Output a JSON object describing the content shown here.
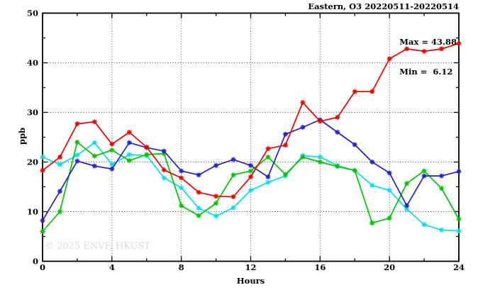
{
  "figure": {
    "title": "Eastern, O3 20220511-20220514",
    "stats": {
      "max_line": "Max = 43.88",
      "min_line": "Min =  6.12"
    },
    "watermark": "© 2025 ENVF, HKUST",
    "xlabel": "Hours",
    "ylabel": "ppb"
  },
  "chart_data": {
    "type": "line",
    "title": "Eastern, O3 20220511-20220514",
    "xlabel": "Hours",
    "ylabel": "ppb",
    "xlim": [
      0,
      24
    ],
    "ylim": [
      0,
      50
    ],
    "x_major_ticks": [
      0,
      4,
      8,
      12,
      16,
      20,
      24
    ],
    "x_minor_tick_step": 2,
    "y_major_ticks": [
      0,
      10,
      20,
      30,
      40,
      50
    ],
    "y_minor_tick_step": 5,
    "grid": {
      "x_lines": [
        4,
        8,
        12,
        16,
        20
      ],
      "y_lines": [
        10,
        20,
        30,
        40
      ],
      "style": "dotted"
    },
    "legend": "none",
    "stats": {
      "max": 43.88,
      "min": 6.12
    },
    "x": [
      0,
      1,
      2,
      3,
      4,
      5,
      6,
      7,
      8,
      9,
      10,
      11,
      12,
      13,
      14,
      15,
      16,
      17,
      18,
      19,
      20,
      21,
      22,
      23,
      24
    ],
    "series": [
      {
        "name": "cyan",
        "color": "#00e0e8",
        "marker": "asterisk",
        "values": [
          21,
          19.5,
          21.4,
          23.9,
          19.5,
          21.5,
          21.3,
          16.8,
          14.8,
          10.7,
          9.1,
          10.8,
          14.3,
          15.9,
          17.2,
          21.3,
          21,
          19.3,
          18.3,
          15.3,
          14.3,
          10.5,
          7.4,
          6.3,
          6.12
        ]
      },
      {
        "name": "green",
        "color": "#00c400",
        "marker": "asterisk",
        "values": [
          6,
          10,
          24,
          21.2,
          22.4,
          20.3,
          21.5,
          21.7,
          11.2,
          9.2,
          11.7,
          17.4,
          18.2,
          21,
          17.5,
          21,
          20,
          19.1,
          18.3,
          7.7,
          8.7,
          15.7,
          18.2,
          14.7,
          8.5
        ]
      },
      {
        "name": "blue",
        "color": "#2222cc",
        "marker": "asterisk",
        "values": [
          8.2,
          14.1,
          20.2,
          19.2,
          18.6,
          23.9,
          22.9,
          22.2,
          18.2,
          17.4,
          19.3,
          20.5,
          19.3,
          17,
          25.6,
          27,
          28.5,
          26,
          23.5,
          20,
          17.8,
          11.2,
          17.2,
          17.2,
          18.1
        ]
      },
      {
        "name": "red",
        "color": "#f20000",
        "marker": "asterisk",
        "values": [
          18.3,
          21,
          27.7,
          28.1,
          23.6,
          26,
          23,
          18.4,
          16.8,
          13.9,
          13.1,
          13,
          17,
          22.7,
          23.4,
          32,
          28.2,
          29,
          34.2,
          34.2,
          40.8,
          42.8,
          42.3,
          42.8,
          43.88
        ]
      }
    ]
  }
}
